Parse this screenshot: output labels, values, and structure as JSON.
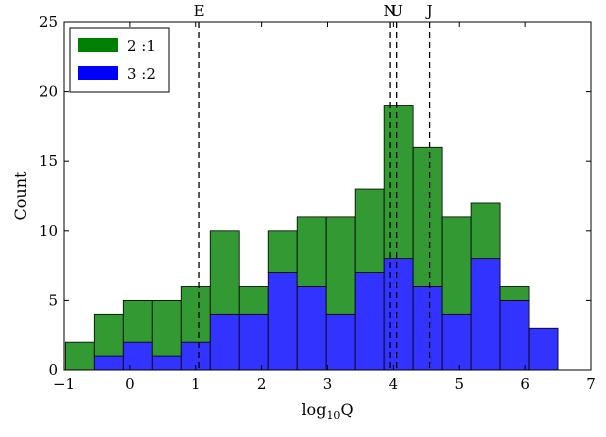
{
  "chart_data": {
    "type": "bar",
    "stacked": true,
    "xlabel": "log",
    "xlabel_sub": "10",
    "xlabel_suffix": "Q",
    "ylabel": "Count",
    "xlim": [
      -1,
      7
    ],
    "ylim": [
      0,
      25
    ],
    "xticks": [
      "−1",
      "0",
      "1",
      "2",
      "3",
      "4",
      "5",
      "6",
      "7"
    ],
    "xtick_values": [
      -1,
      0,
      1,
      2,
      3,
      4,
      5,
      6,
      7
    ],
    "yticks": [
      "0",
      "5",
      "10",
      "15",
      "20",
      "25"
    ],
    "ytick_values": [
      0,
      5,
      10,
      15,
      20,
      25
    ],
    "bin_width": 0.44,
    "x": [
      -0.98,
      -0.54,
      -0.1,
      0.34,
      0.78,
      1.22,
      1.66,
      2.1,
      2.54,
      2.98,
      3.42,
      3.86,
      4.3,
      4.74,
      5.18,
      5.62,
      6.06
    ],
    "series": [
      {
        "name": "3 :2",
        "color": "#3333ff",
        "values": [
          0,
          1,
          2,
          1,
          2,
          4,
          4,
          7,
          6,
          4,
          7,
          8,
          6,
          4,
          8,
          5,
          3
        ]
      },
      {
        "name": "2 :1",
        "color": "#339933",
        "values": [
          2,
          3,
          3,
          4,
          4,
          6,
          2,
          3,
          5,
          7,
          6,
          11,
          10,
          7,
          4,
          1,
          0
        ]
      }
    ],
    "legend": {
      "placement": "top-left",
      "entries": [
        {
          "label": "2 :1",
          "color": "#008000"
        },
        {
          "label": "3 :2",
          "color": "#0000ff"
        }
      ]
    },
    "annotations": [
      {
        "label": "E",
        "x": 1.05
      },
      {
        "label": "N",
        "x": 3.95
      },
      {
        "label": "U",
        "x": 4.05
      },
      {
        "label": "J",
        "x": 4.55
      }
    ],
    "grid": false
  }
}
